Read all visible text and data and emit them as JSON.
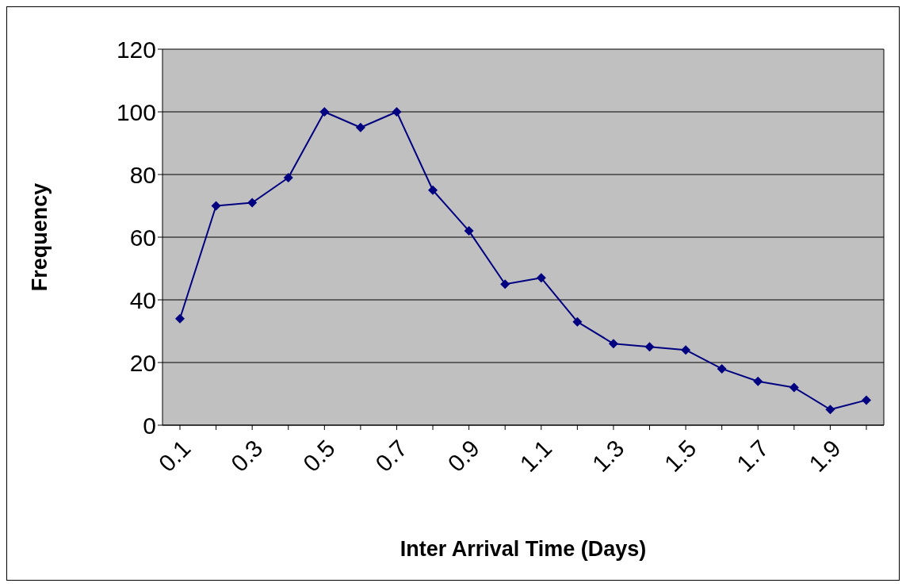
{
  "chart_data": {
    "type": "line",
    "xlabel": "Inter Arrival Time (Days)",
    "ylabel": "Frequency",
    "categories": [
      "0.1",
      null,
      "0.3",
      null,
      "0.5",
      null,
      "0.7",
      null,
      "0.9",
      null,
      "1.1",
      null,
      "1.3",
      null,
      "1.5",
      null,
      "1.7",
      null,
      "1.9",
      null
    ],
    "series": [
      {
        "color": "#000080",
        "values": [
          34,
          70,
          71,
          79,
          100,
          95,
          100,
          75,
          62,
          45,
          47,
          33,
          26,
          25,
          24,
          18,
          14,
          12,
          5,
          8
        ]
      }
    ],
    "ylim": [
      0,
      120
    ],
    "yticks": [
      0,
      20,
      40,
      60,
      80,
      100,
      120
    ],
    "grid": "y",
    "marker": "diamond",
    "line_style": "solid"
  }
}
